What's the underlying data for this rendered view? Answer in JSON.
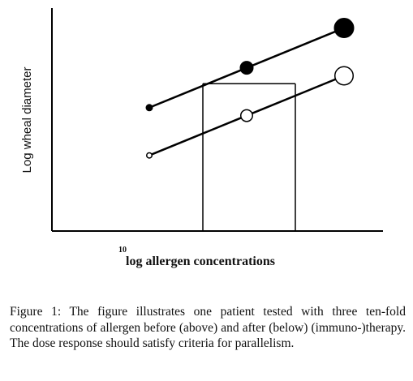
{
  "chart_data": {
    "type": "line",
    "xlabel_superscript": "10",
    "xlabel": "log allergen concentrations",
    "ylabel": "Log wheal diameter",
    "x": [
      1,
      2,
      3
    ],
    "series": [
      {
        "values": [
          1.55,
          2.05,
          2.55
        ],
        "marker": "filled"
      },
      {
        "values": [
          0.95,
          1.45,
          1.95
        ],
        "marker": "open"
      }
    ],
    "parallelism_box": {
      "x": [
        1.55,
        2.5
      ],
      "y_top": 1.85
    },
    "xlim": [
      0,
      3.4
    ],
    "ylim": [
      0,
      2.8
    ],
    "grid": false,
    "colors": {
      "line": "#000000",
      "open_fill": "#ffffff"
    }
  },
  "caption": "Figure 1: The figure illustrates one patient tested with three ten-fold concentrations of allergen before (above) and after (below) (immuno-)therapy. The dose response should satisfy criteria for parallelism."
}
